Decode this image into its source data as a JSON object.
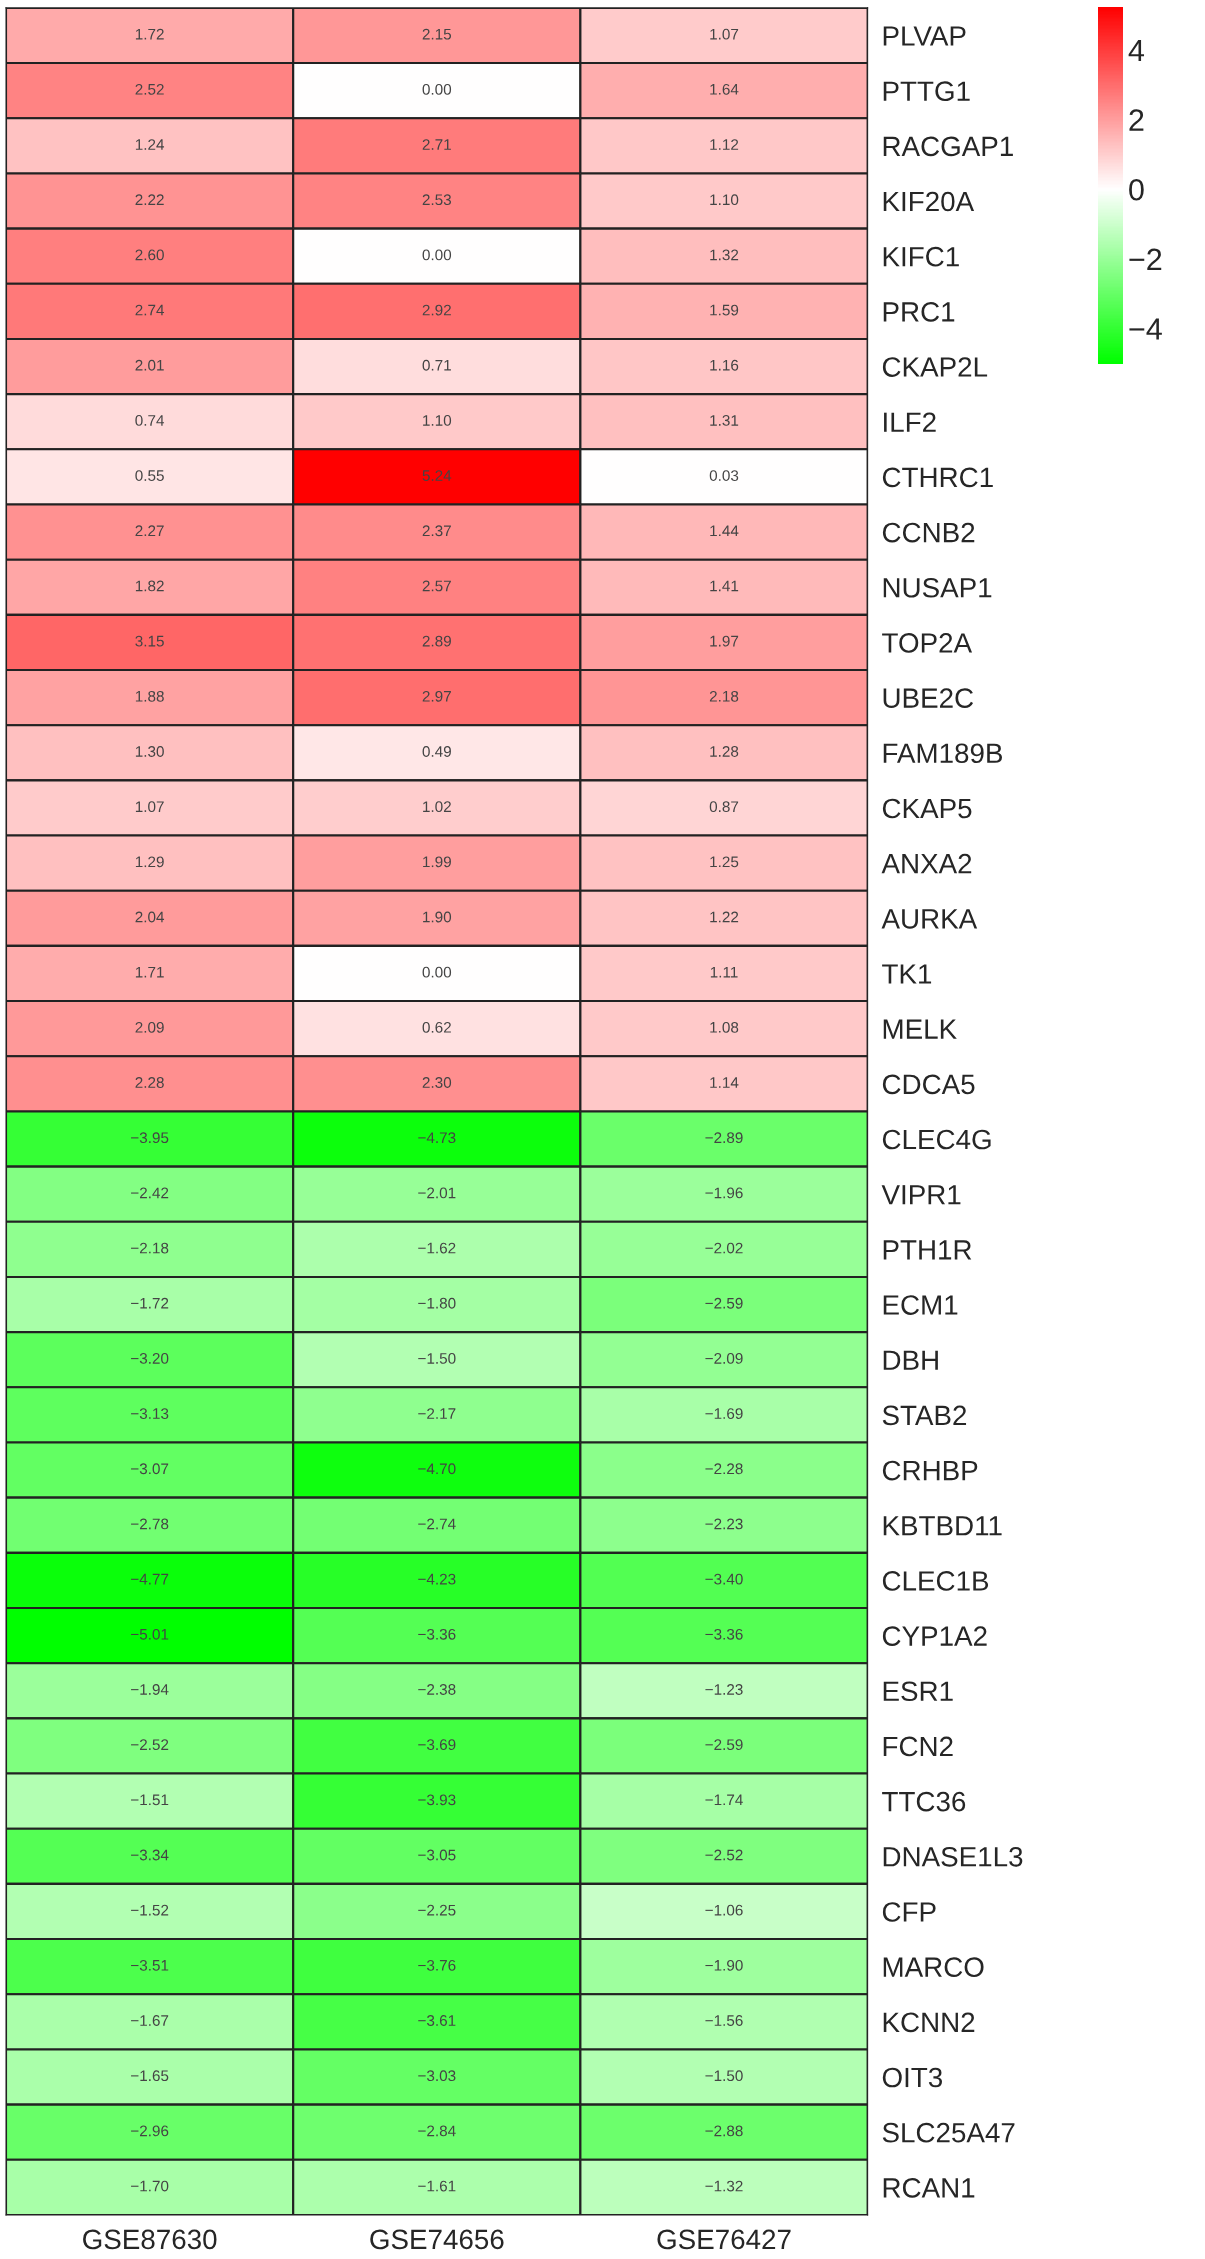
{
  "chart_data": {
    "type": "heatmap",
    "categories": [
      "GSE87630",
      "GSE74656",
      "GSE76427"
    ],
    "y_categories": [
      "PLVAP",
      "PTTG1",
      "RACGAP1",
      "KIF20A",
      "KIFC1",
      "PRC1",
      "CKAP2L",
      "ILF2",
      "CTHRC1",
      "CCNB2",
      "NUSAP1",
      "TOP2A",
      "UBE2C",
      "FAM189B",
      "CKAP5",
      "ANXA2",
      "AURKA",
      "TK1",
      "MELK",
      "CDCA5",
      "CLEC4G",
      "VIPR1",
      "PTH1R",
      "ECM1",
      "DBH",
      "STAB2",
      "CRHBP",
      "KBTBD11",
      "CLEC1B",
      "CYP1A2",
      "ESR1",
      "FCN2",
      "TTC36",
      "DNASE1L3",
      "CFP",
      "MARCO",
      "KCNN2",
      "OIT3",
      "SLC25A47",
      "RCAN1"
    ],
    "cells": [
      [
        1.72,
        2.15,
        1.07
      ],
      [
        2.52,
        0.0,
        1.64
      ],
      [
        1.24,
        2.71,
        1.12
      ],
      [
        2.22,
        2.53,
        1.1
      ],
      [
        2.6,
        0.0,
        1.32
      ],
      [
        2.74,
        2.92,
        1.59
      ],
      [
        2.01,
        0.71,
        1.16
      ],
      [
        0.74,
        1.1,
        1.31
      ],
      [
        0.55,
        5.24,
        0.03
      ],
      [
        2.27,
        2.37,
        1.44
      ],
      [
        1.82,
        2.57,
        1.41
      ],
      [
        3.15,
        2.89,
        1.97
      ],
      [
        1.88,
        2.97,
        2.18
      ],
      [
        1.3,
        0.49,
        1.28
      ],
      [
        1.07,
        1.02,
        0.87
      ],
      [
        1.29,
        1.99,
        1.25
      ],
      [
        2.04,
        1.9,
        1.22
      ],
      [
        1.71,
        0.0,
        1.11
      ],
      [
        2.09,
        0.62,
        1.08
      ],
      [
        2.28,
        2.3,
        1.14
      ],
      [
        -3.95,
        -4.73,
        -2.89
      ],
      [
        -2.42,
        -2.01,
        -1.96
      ],
      [
        -2.18,
        -1.62,
        -2.02
      ],
      [
        -1.72,
        -1.8,
        -2.59
      ],
      [
        -3.2,
        -1.5,
        -2.09
      ],
      [
        -3.13,
        -2.17,
        -1.69
      ],
      [
        -3.07,
        -4.7,
        -2.28
      ],
      [
        -2.78,
        -2.74,
        -2.23
      ],
      [
        -4.77,
        -4.23,
        -3.4
      ],
      [
        -5.01,
        -3.36,
        -3.36
      ],
      [
        -1.94,
        -2.38,
        -1.23
      ],
      [
        -2.52,
        -3.69,
        -2.59
      ],
      [
        -1.51,
        -3.93,
        -1.74
      ],
      [
        -3.34,
        -3.05,
        -2.52
      ],
      [
        -1.52,
        -2.25,
        -1.06
      ],
      [
        -3.51,
        -3.76,
        -1.9
      ],
      [
        -1.67,
        -3.61,
        -1.56
      ],
      [
        -1.65,
        -3.03,
        -1.5
      ],
      [
        -2.96,
        -2.84,
        -2.88
      ],
      [
        -1.7,
        -1.61,
        -1.32
      ]
    ],
    "cell_labels": [
      [
        "1.72",
        "2.15",
        "1.07"
      ],
      [
        "2.52",
        "0.00",
        "1.64"
      ],
      [
        "1.24",
        "2.71",
        "1.12"
      ],
      [
        "2.22",
        "2.53",
        "1.10"
      ],
      [
        "2.60",
        "0.00",
        "1.32"
      ],
      [
        "2.74",
        "2.92",
        "1.59"
      ],
      [
        "2.01",
        "0.71",
        "1.16"
      ],
      [
        "0.74",
        "1.10",
        "1.31"
      ],
      [
        "0.55",
        "5.24",
        "0.03"
      ],
      [
        "2.27",
        "2.37",
        "1.44"
      ],
      [
        "1.82",
        "2.57",
        "1.41"
      ],
      [
        "3.15",
        "2.89",
        "1.97"
      ],
      [
        "1.88",
        "2.97",
        "2.18"
      ],
      [
        "1.30",
        "0.49",
        "1.28"
      ],
      [
        "1.07",
        "1.02",
        "0.87"
      ],
      [
        "1.29",
        "1.99",
        "1.25"
      ],
      [
        "2.04",
        "1.90",
        "1.22"
      ],
      [
        "1.71",
        "0.00",
        "1.11"
      ],
      [
        "2.09",
        "0.62",
        "1.08"
      ],
      [
        "2.28",
        "2.30",
        "1.14"
      ],
      [
        "−3.95",
        "−4.73",
        "−2.89"
      ],
      [
        "−2.42",
        "−2.01",
        "−1.96"
      ],
      [
        "−2.18",
        "−1.62",
        "−2.02"
      ],
      [
        "−1.72",
        "−1.80",
        "−2.59"
      ],
      [
        "−3.20",
        "−1.50",
        "−2.09"
      ],
      [
        "−3.13",
        "−2.17",
        "−1.69"
      ],
      [
        "−3.07",
        "−4.70",
        "−2.28"
      ],
      [
        "−2.78",
        "−2.74",
        "−2.23"
      ],
      [
        "−4.77",
        "−4.23",
        "−3.40"
      ],
      [
        "−5.01",
        "−3.36",
        "−3.36"
      ],
      [
        "−1.94",
        "−2.38",
        "−1.23"
      ],
      [
        "−2.52",
        "−3.69",
        "−2.59"
      ],
      [
        "−1.51",
        "−3.93",
        "−1.74"
      ],
      [
        "−3.34",
        "−3.05",
        "−2.52"
      ],
      [
        "−1.52",
        "−2.25",
        "−1.06"
      ],
      [
        "−3.51",
        "−3.76",
        "−1.90"
      ],
      [
        "−1.67",
        "−3.61",
        "−1.56"
      ],
      [
        "−1.65",
        "−3.03",
        "−1.50"
      ],
      [
        "−2.96",
        "−2.84",
        "−2.88"
      ],
      [
        "−1.70",
        "−1.61",
        "−1.32"
      ]
    ],
    "clim": [
      -5.01,
      5.24
    ],
    "cticks": [
      {
        "value": -4,
        "label": "−4"
      },
      {
        "value": -2,
        "label": "−2"
      },
      0,
      2,
      4
    ]
  }
}
